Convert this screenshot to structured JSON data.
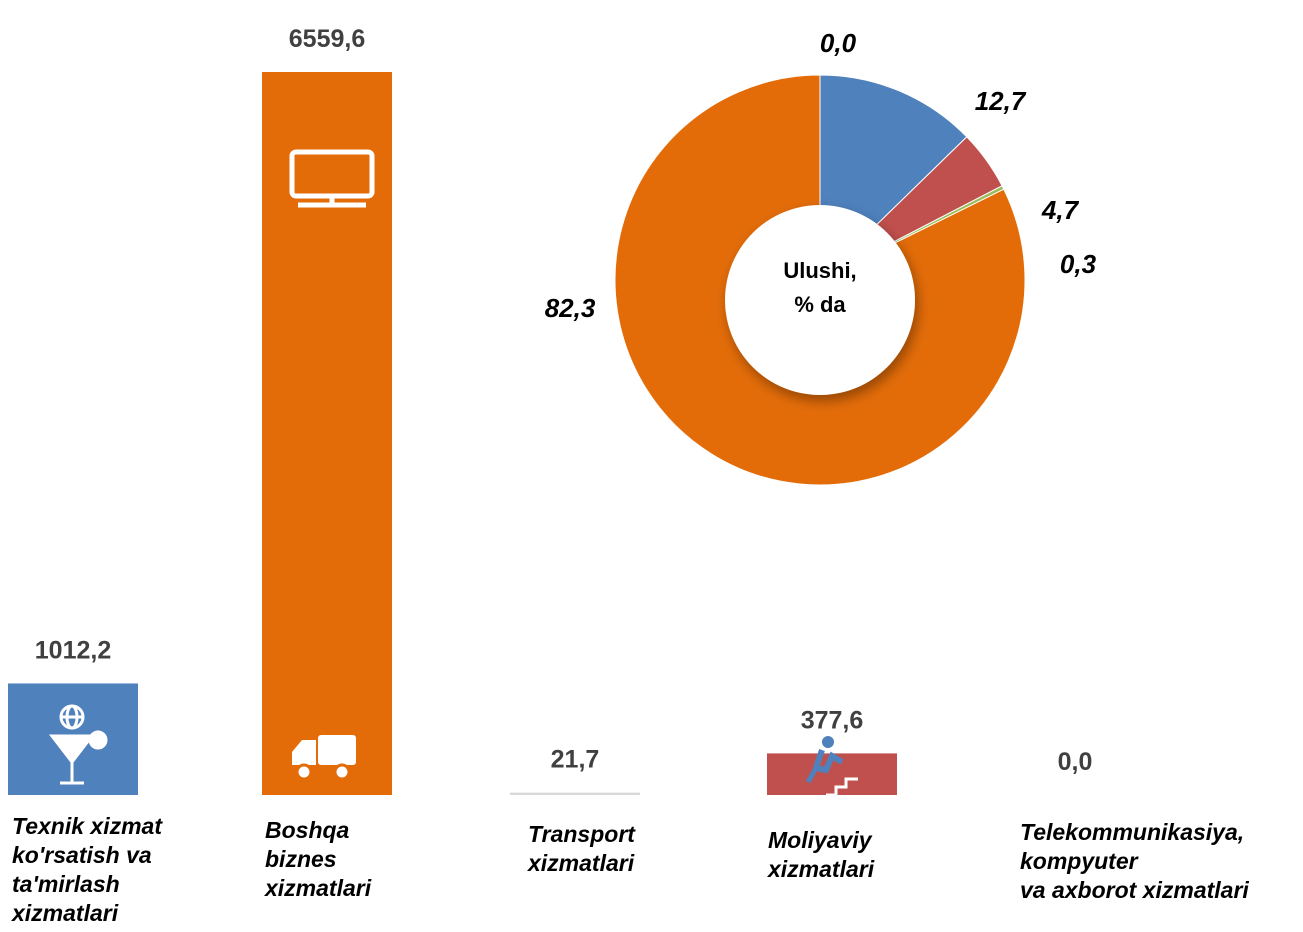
{
  "chart_data": [
    {
      "type": "bar",
      "categories": [
        "Texnik xizmat\nko'rsatish va\nta'mirlash\nxizmatlari",
        "Boshqa\nbiznes\nxizmatlari",
        "Transport\nxizmatlari",
        "Moliyaviy\nxizmatlari",
        "Telekommunikasiya,\nkompyuter\nva axborot xizmatlari"
      ],
      "values": [
        1012.2,
        6559.6,
        21.7,
        377.6,
        0.0
      ],
      "value_labels": [
        "1012,2",
        "6559,6",
        "21,7",
        "377,6",
        "0,0"
      ],
      "colors": [
        "#4f81bd",
        "#e36c09",
        "#d9d9d9",
        "#c0504d",
        "#8064a2"
      ]
    },
    {
      "type": "donut",
      "center_label": [
        "Ulushi,",
        "% da"
      ],
      "values": [
        0.0,
        12.7,
        4.7,
        0.3,
        82.3
      ],
      "value_labels": [
        "0,0",
        "12,7",
        "4,7",
        "0,3",
        "82,3"
      ],
      "colors": [
        "#8064a2",
        "#4f81bd",
        "#c0504d",
        "#9bbb59",
        "#e36c09"
      ]
    }
  ]
}
